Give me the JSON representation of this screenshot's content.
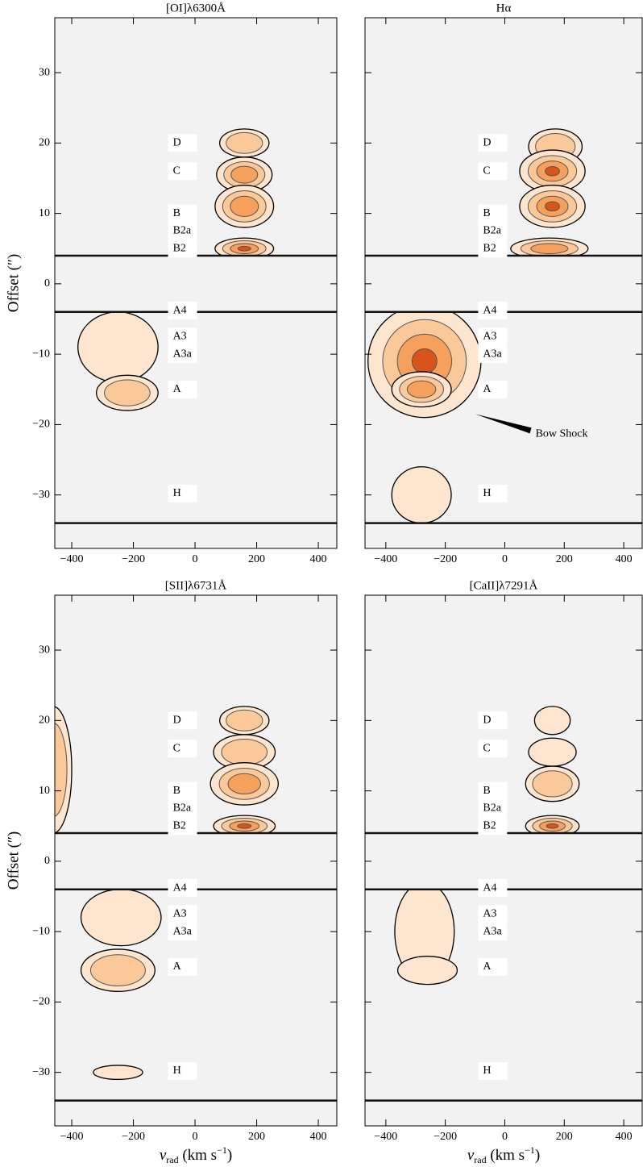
{
  "chart_data": [
    {
      "type": "contour",
      "title": "[OI]λ6300Å",
      "ylabel": "Offset (″)",
      "xlim": [
        -455,
        460
      ],
      "ylim": [
        -37.6,
        37.8
      ],
      "xticks": [
        {
          "value": -400,
          "label": "−400"
        },
        {
          "value": -200,
          "label": "−200"
        },
        0,
        200,
        400
      ],
      "yticks": [
        {
          "value": -30,
          "label": "−30"
        },
        {
          "value": -20,
          "label": "−20"
        },
        {
          "value": -10,
          "label": "−10"
        },
        0,
        10,
        20,
        30
      ],
      "masked_range": [
        -4,
        4
      ],
      "horizontal_features": [
        4,
        -4,
        -34
      ],
      "level_colors": [
        "#fde5cf",
        "#fbc89a",
        "#f5a05c",
        "#d9541a"
      ],
      "knots": [
        {
          "label": "D",
          "offset": 20
        },
        {
          "label": "C",
          "offset": 16
        },
        {
          "label": "B",
          "offset": 10
        },
        {
          "label": "B2a",
          "offset": 7.5
        },
        {
          "label": "B2",
          "offset": 5
        },
        {
          "label": "A4",
          "offset": -3.8
        },
        {
          "label": "A3",
          "offset": -7.5
        },
        {
          "label": "A3a",
          "offset": -10
        },
        {
          "label": "A",
          "offset": -15
        },
        {
          "label": "H",
          "offset": -29.8
        }
      ],
      "emission": {
        "x": [
          160,
          160,
          160,
          160,
          -250,
          -220
        ],
        "y": [
          20,
          15.5,
          11,
          5,
          -9,
          -15.5
        ],
        "dx": [
          80,
          90,
          95,
          95,
          130,
          100
        ],
        "dy": [
          2,
          2.5,
          3,
          1.5,
          5,
          2.5
        ],
        "values": [
          2,
          3,
          3,
          4,
          1,
          2
        ]
      }
    },
    {
      "type": "contour",
      "title": "Hα",
      "xlim": [
        -470,
        462
      ],
      "ylim": [
        -37.6,
        37.8
      ],
      "xticks": [
        {
          "value": -400,
          "label": "−400"
        },
        {
          "value": -200,
          "label": "−200"
        },
        0,
        200,
        400
      ],
      "yticks": [
        {
          "value": -30,
          "label": "−30"
        },
        {
          "value": -20,
          "label": "−20"
        },
        {
          "value": -10,
          "label": "−10"
        },
        0,
        10,
        20,
        30
      ],
      "masked_range": [
        -4,
        4
      ],
      "horizontal_features": [
        4,
        -4,
        -34
      ],
      "level_colors": [
        "#fde5cf",
        "#fbc89a",
        "#f5a05c",
        "#d9541a"
      ],
      "knots": [
        {
          "label": "D",
          "offset": 20
        },
        {
          "label": "C",
          "offset": 16
        },
        {
          "label": "B",
          "offset": 10
        },
        {
          "label": "B2a",
          "offset": 7.5
        },
        {
          "label": "B2",
          "offset": 5
        },
        {
          "label": "A4",
          "offset": -3.8
        },
        {
          "label": "A3",
          "offset": -7.5
        },
        {
          "label": "A3a",
          "offset": -10
        },
        {
          "label": "A",
          "offset": -15
        },
        {
          "label": "H",
          "offset": -29.8
        }
      ],
      "annotation": {
        "text": "Bow Shock",
        "x": -100,
        "y": -18.5
      },
      "emission": {
        "x": [
          170,
          160,
          160,
          150,
          -270,
          -280,
          -280
        ],
        "y": [
          19.5,
          16,
          11,
          5,
          -11,
          -15,
          -30
        ],
        "dx": [
          90,
          110,
          110,
          130,
          190,
          100,
          100
        ],
        "dy": [
          2.5,
          3,
          3,
          1.5,
          8,
          2.5,
          4
        ],
        "values": [
          2,
          4,
          4,
          3,
          4,
          3,
          1
        ]
      }
    },
    {
      "type": "contour",
      "title": "[SII]λ6731Å",
      "ylabel": "Offset (″)",
      "xlabel": [
        "v",
        "rad",
        " (km s",
        "−1",
        ")"
      ],
      "xlim": [
        -455,
        460
      ],
      "ylim": [
        -37.6,
        37.8
      ],
      "xticks": [
        {
          "value": -400,
          "label": "−400"
        },
        {
          "value": -200,
          "label": "−200"
        },
        0,
        200,
        400
      ],
      "yticks": [
        {
          "value": -30,
          "label": "−30"
        },
        {
          "value": -20,
          "label": "−20"
        },
        {
          "value": -10,
          "label": "−10"
        },
        0,
        10,
        20,
        30
      ],
      "masked_range": [
        -4,
        4
      ],
      "horizontal_features": [
        4,
        -4,
        -34
      ],
      "level_colors": [
        "#fde5cf",
        "#fbc89a",
        "#f5a05c",
        "#d9541a"
      ],
      "knots": [
        {
          "label": "D",
          "offset": 20
        },
        {
          "label": "C",
          "offset": 16
        },
        {
          "label": "B",
          "offset": 10
        },
        {
          "label": "B2a",
          "offset": 7.5
        },
        {
          "label": "B2",
          "offset": 5
        },
        {
          "label": "A4",
          "offset": -3.8
        },
        {
          "label": "A3",
          "offset": -7.5
        },
        {
          "label": "A3a",
          "offset": -10
        },
        {
          "label": "A",
          "offset": -15
        },
        {
          "label": "H",
          "offset": -29.8
        }
      ],
      "emission": {
        "x": [
          160,
          160,
          160,
          160,
          -460,
          -240,
          -250,
          -250
        ],
        "y": [
          20,
          15.5,
          11,
          5,
          13,
          -8,
          -15.5,
          -30
        ],
        "dx": [
          80,
          100,
          110,
          100,
          60,
          130,
          120,
          80
        ],
        "dy": [
          2,
          2.5,
          3,
          1.5,
          9,
          4,
          3,
          1
        ],
        "values": [
          2,
          2,
          3,
          4,
          2,
          1,
          2,
          1
        ]
      }
    },
    {
      "type": "contour",
      "title": "[CaII]λ7291Å",
      "xlabel": [
        "v",
        "rad",
        " (km s",
        "−1",
        ")"
      ],
      "xlim": [
        -470,
        462
      ],
      "ylim": [
        -37.6,
        37.8
      ],
      "xticks": [
        {
          "value": -400,
          "label": "−400"
        },
        {
          "value": -200,
          "label": "−200"
        },
        0,
        200,
        400
      ],
      "yticks": [
        {
          "value": -30,
          "label": "−30"
        },
        {
          "value": -20,
          "label": "−20"
        },
        {
          "value": -10,
          "label": "−10"
        },
        0,
        10,
        20,
        30
      ],
      "masked_range": [
        -4,
        4
      ],
      "horizontal_features": [
        4,
        -4,
        -34
      ],
      "level_colors": [
        "#fde5cf",
        "#fbc89a",
        "#f5a05c",
        "#d9541a"
      ],
      "knots": [
        {
          "label": "D",
          "offset": 20
        },
        {
          "label": "C",
          "offset": 16
        },
        {
          "label": "B",
          "offset": 10
        },
        {
          "label": "B2a",
          "offset": 7.5
        },
        {
          "label": "B2",
          "offset": 5
        },
        {
          "label": "A4",
          "offset": -3.8
        },
        {
          "label": "A3",
          "offset": -7.5
        },
        {
          "label": "A3a",
          "offset": -10
        },
        {
          "label": "A",
          "offset": -15
        },
        {
          "label": "H",
          "offset": -29.8
        }
      ],
      "emission": {
        "x": [
          160,
          160,
          160,
          160,
          -270,
          -260
        ],
        "y": [
          20,
          15.5,
          11,
          5,
          -10,
          -15.5
        ],
        "dx": [
          60,
          80,
          90,
          90,
          100,
          100
        ],
        "dy": [
          2,
          2,
          2.5,
          1.5,
          7,
          2
        ],
        "values": [
          1,
          1,
          2,
          4,
          1,
          1
        ]
      }
    }
  ]
}
